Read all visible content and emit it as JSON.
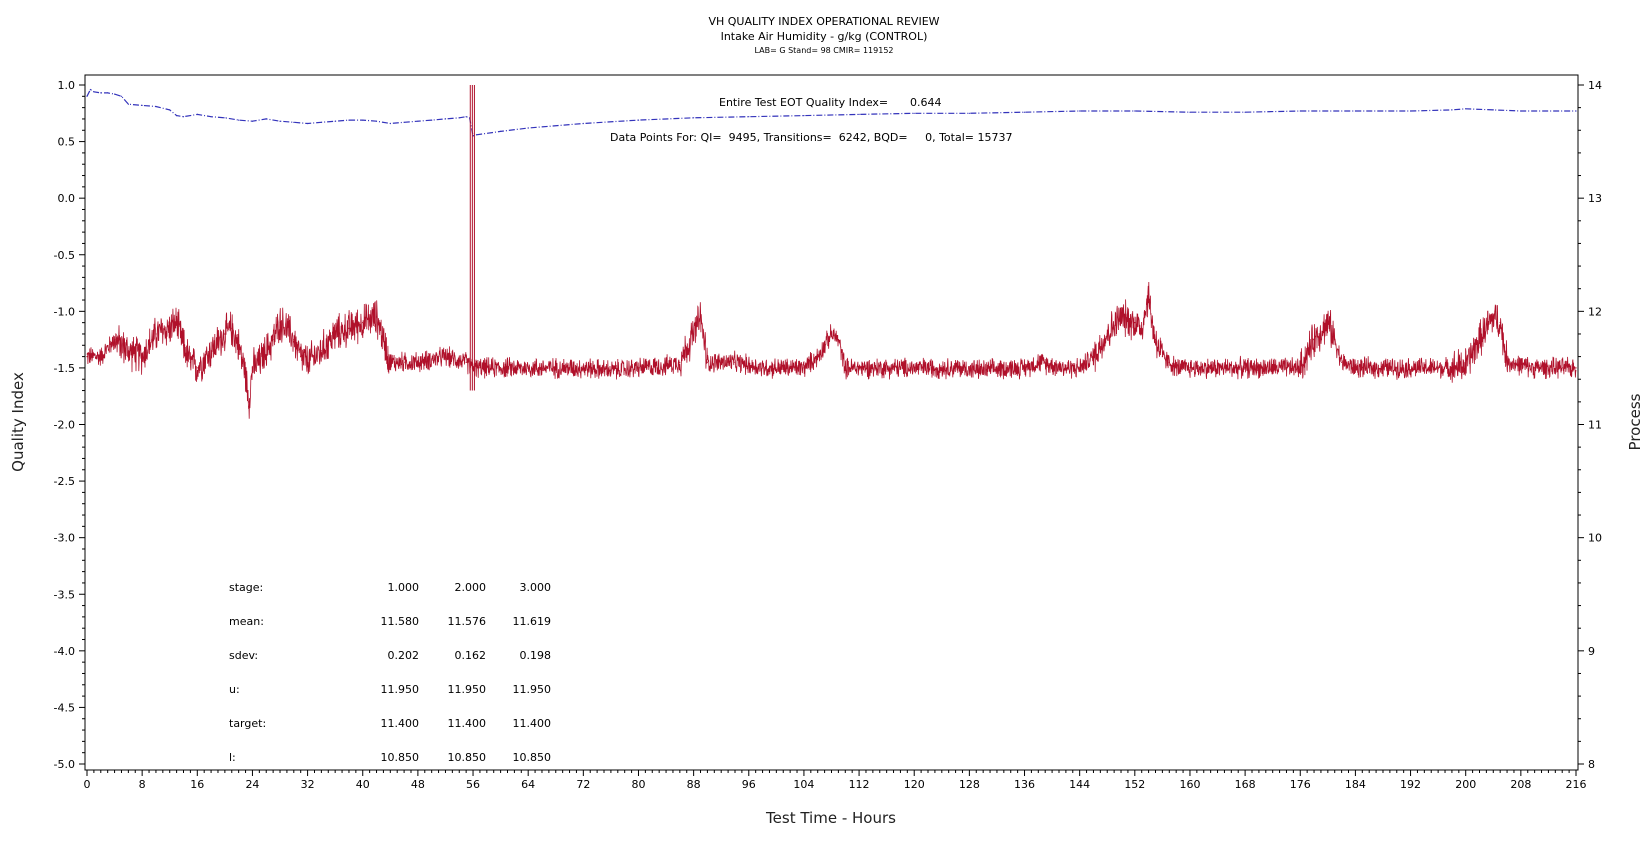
{
  "header": {
    "title": "VH QUALITY INDEX OPERATIONAL REVIEW",
    "subtitle": "Intake Air Humidity - g/kg (CONTROL)",
    "lab_line": "LAB= G Stand= 98 CMIR= 119152"
  },
  "annotations": {
    "eot_label": "Entire Test EOT Quality Index=",
    "eot_value": "0.644",
    "points_text": "Data Points For: QI=  9495, Transitions=  6242, BQD=     0, Total= 15737"
  },
  "stats_table": {
    "rows": [
      {
        "label": "stage:",
        "values": [
          "1.000",
          "2.000",
          "3.000"
        ]
      },
      {
        "label": "mean:",
        "values": [
          "11.580",
          "11.576",
          "11.619"
        ]
      },
      {
        "label": "sdev:",
        "values": [
          "0.202",
          "0.162",
          "0.198"
        ]
      },
      {
        "label": "u:",
        "values": [
          "11.950",
          "11.950",
          "11.950"
        ]
      },
      {
        "label": "target:",
        "values": [
          "11.400",
          "11.400",
          "11.400"
        ]
      },
      {
        "label": "l:",
        "values": [
          "10.850",
          "10.850",
          "10.850"
        ]
      }
    ]
  },
  "chart_data": {
    "type": "line",
    "title": "VH QUALITY INDEX OPERATIONAL REVIEW",
    "xlabel": "Test Time - Hours",
    "ylabel_left": "Quality Index",
    "ylabel_right": "Process",
    "xlim": [
      0,
      216
    ],
    "ylim_left": [
      -5.0,
      1.0
    ],
    "ylim_right": [
      8,
      14
    ],
    "x_ticks": [
      "0",
      "8",
      "16",
      "24",
      "32",
      "40",
      "48",
      "56",
      "64",
      "72",
      "80",
      "88",
      "96",
      "104",
      "112",
      "120",
      "128",
      "136",
      "144",
      "152",
      "160",
      "168",
      "176",
      "184",
      "192",
      "200",
      "208",
      "216"
    ],
    "y_left_ticks": [
      "1.0",
      "0.5",
      "0.0",
      "-0.5",
      "-1.0",
      "-1.5",
      "-2.0",
      "-2.5",
      "-3.0",
      "-3.5",
      "-4.0",
      "-4.5",
      "-5.0"
    ],
    "y_right_ticks": [
      "14",
      "13",
      "12",
      "11",
      "10",
      "9",
      "8"
    ],
    "colors": {
      "quality_index": "#3333bb",
      "process": "#b0102a"
    },
    "series": [
      {
        "axis": "left",
        "style": "dashed",
        "x": [
          0,
          0.5,
          1,
          2,
          3,
          4,
          5,
          6,
          8,
          10,
          12,
          13,
          14,
          16,
          18,
          20,
          22,
          24,
          26,
          28,
          30,
          32,
          34,
          36,
          38,
          40,
          42,
          44,
          46,
          48,
          50,
          52,
          54,
          55,
          55.5,
          56,
          56.5,
          60,
          64,
          72,
          80,
          88,
          96,
          104,
          112,
          120,
          128,
          136,
          144,
          152,
          160,
          168,
          176,
          184,
          192,
          198,
          200,
          204,
          208,
          216
        ],
        "y": [
          0.9,
          0.96,
          0.94,
          0.93,
          0.93,
          0.92,
          0.9,
          0.83,
          0.82,
          0.81,
          0.78,
          0.73,
          0.72,
          0.74,
          0.72,
          0.71,
          0.69,
          0.68,
          0.7,
          0.68,
          0.67,
          0.66,
          0.67,
          0.68,
          0.69,
          0.69,
          0.68,
          0.66,
          0.67,
          0.68,
          0.69,
          0.7,
          0.71,
          0.72,
          0.71,
          0.55,
          0.56,
          0.59,
          0.62,
          0.66,
          0.69,
          0.71,
          0.72,
          0.73,
          0.74,
          0.75,
          0.75,
          0.76,
          0.77,
          0.77,
          0.76,
          0.76,
          0.77,
          0.77,
          0.77,
          0.78,
          0.79,
          0.78,
          0.77,
          0.77
        ]
      },
      {
        "axis": "right",
        "style": "noisy",
        "x": [
          0,
          2,
          4,
          6,
          8,
          10,
          12,
          13,
          14,
          15,
          16,
          18,
          20,
          21,
          22,
          23,
          23.5,
          24,
          25,
          27,
          28,
          29,
          30,
          31,
          32,
          34,
          36,
          38,
          40,
          42,
          43,
          44,
          46,
          48,
          52,
          55,
          56,
          57,
          60,
          64,
          68,
          72,
          76,
          80,
          84,
          86,
          88,
          89,
          90,
          94,
          98,
          104,
          106,
          108,
          109,
          110,
          114,
          118,
          122,
          126,
          130,
          134,
          136,
          138,
          142,
          144,
          146,
          148,
          150,
          152,
          153,
          154,
          154.5,
          155,
          156,
          157,
          158,
          160,
          164,
          168,
          172,
          176,
          178,
          180,
          181,
          182,
          184,
          190,
          196,
          198,
          200,
          202,
          204,
          205,
          206,
          210,
          214,
          216
        ],
        "y": [
          11.6,
          11.6,
          11.75,
          11.65,
          11.6,
          11.8,
          11.85,
          11.9,
          11.7,
          11.55,
          11.5,
          11.65,
          11.8,
          11.85,
          11.7,
          11.45,
          11.2,
          11.5,
          11.55,
          11.75,
          11.9,
          11.85,
          11.75,
          11.6,
          11.55,
          11.65,
          11.8,
          11.85,
          11.9,
          11.95,
          11.75,
          11.55,
          11.55,
          11.55,
          11.6,
          11.55,
          11.5,
          11.5,
          11.5,
          11.5,
          11.5,
          11.5,
          11.48,
          11.5,
          11.52,
          11.55,
          11.8,
          11.95,
          11.55,
          11.55,
          11.5,
          11.5,
          11.6,
          11.8,
          11.75,
          11.5,
          11.5,
          11.5,
          11.5,
          11.5,
          11.48,
          11.5,
          11.5,
          11.55,
          11.5,
          11.5,
          11.6,
          11.8,
          11.95,
          11.9,
          11.85,
          12.15,
          11.9,
          11.75,
          11.6,
          11.55,
          11.5,
          11.5,
          11.5,
          11.5,
          11.5,
          11.5,
          11.75,
          11.9,
          11.75,
          11.55,
          11.5,
          11.5,
          11.5,
          11.5,
          11.52,
          11.75,
          11.95,
          11.9,
          11.55,
          11.5,
          11.5,
          11.5
        ]
      }
    ]
  }
}
